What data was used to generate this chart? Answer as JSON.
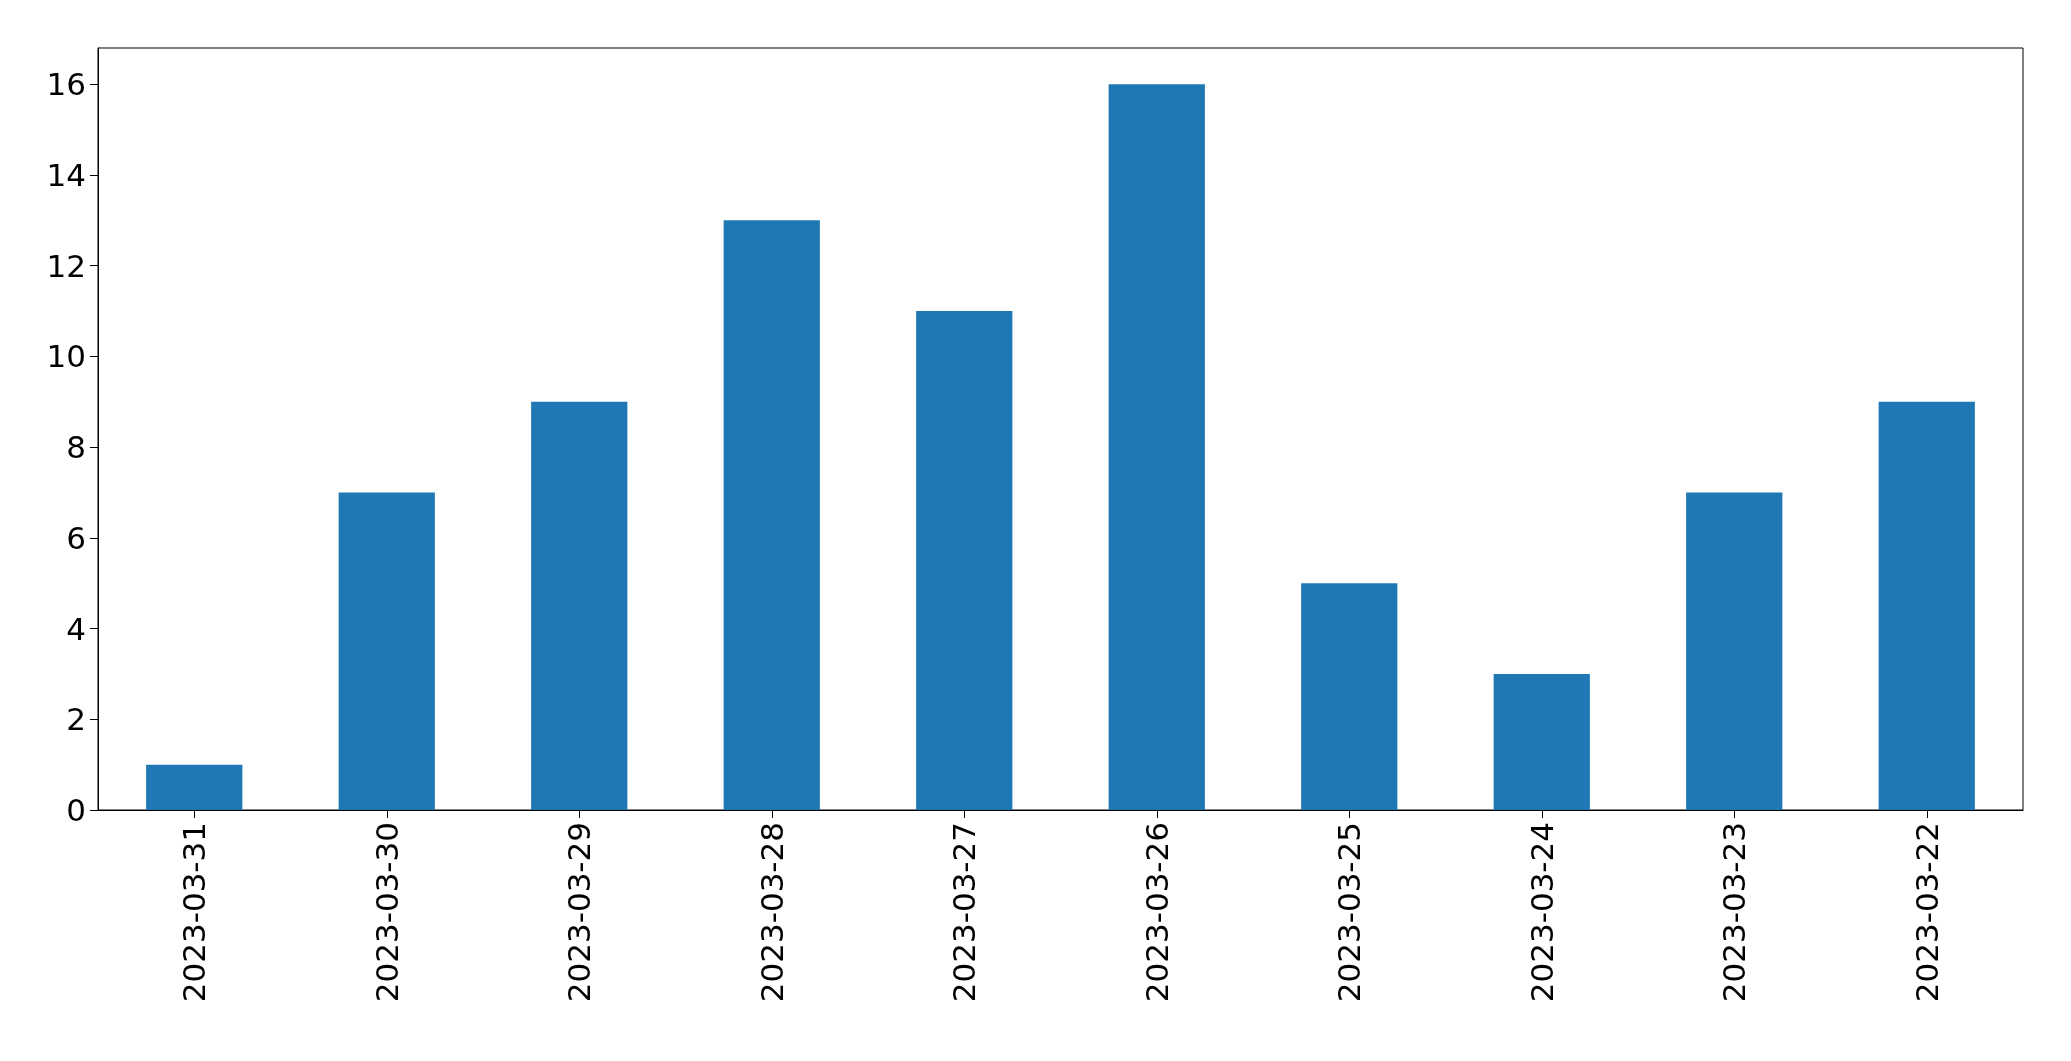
{
  "chart_data": {
    "type": "bar",
    "categories": [
      "2023-03-31",
      "2023-03-30",
      "2023-03-29",
      "2023-03-28",
      "2023-03-27",
      "2023-03-26",
      "2023-03-25",
      "2023-03-24",
      "2023-03-23",
      "2023-03-22"
    ],
    "values": [
      1,
      7,
      9,
      13,
      11,
      16,
      5,
      3,
      7,
      9
    ],
    "color": "#1f77b4",
    "ylim": [
      0,
      16.8
    ],
    "yticks": [
      0,
      2,
      4,
      6,
      8,
      10,
      12,
      14,
      16
    ]
  }
}
